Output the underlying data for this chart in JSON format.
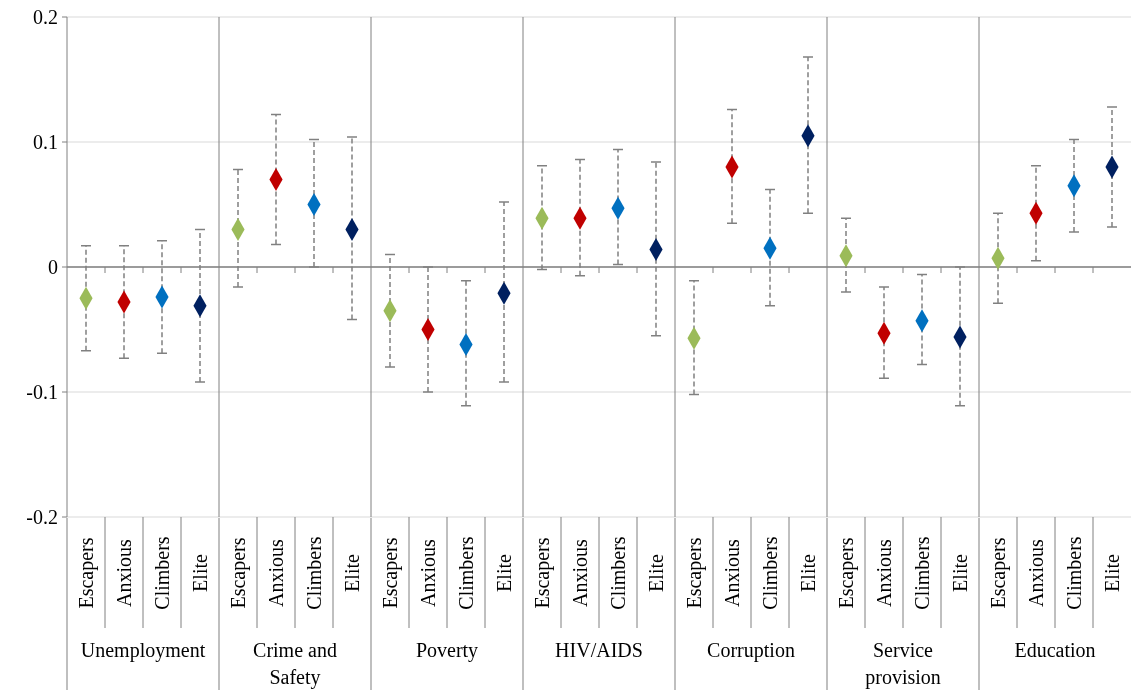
{
  "chart_data": {
    "type": "scatter",
    "marker": "diamond",
    "grid": "y",
    "ylim": [
      -0.2,
      0.2
    ],
    "yticks": [
      -0.2,
      -0.1,
      0,
      0.1,
      0.2
    ],
    "categories": [
      "Escapers",
      "Anxious",
      "Climbers",
      "Elite",
      "Escapers",
      "Anxious",
      "Climbers",
      "Elite",
      "Escapers",
      "Anxious",
      "Climbers",
      "Elite",
      "Escapers",
      "Anxious",
      "Climbers",
      "Elite",
      "Escapers",
      "Anxious",
      "Climbers",
      "Elite",
      "Escapers",
      "Anxious",
      "Climbers",
      "Elite",
      "Escapers",
      "Anxious",
      "Climbers",
      "Elite"
    ],
    "annotations": [
      "Unemployment",
      "Crime and Safety",
      "Poverty",
      "HIV/AIDS",
      "Corruption",
      "Service provision",
      "Education"
    ],
    "values": [
      -0.025,
      -0.028,
      -0.024,
      -0.031,
      0.03,
      0.07,
      0.05,
      0.03,
      -0.035,
      -0.05,
      -0.062,
      -0.021,
      0.039,
      0.039,
      0.047,
      0.014,
      -0.057,
      0.08,
      0.015,
      0.105,
      0.009,
      -0.053,
      -0.043,
      -0.056,
      0.007,
      0.043,
      0.065,
      0.08
    ],
    "colors": [
      "#9bbb59",
      "#c00000",
      "#0070c0",
      "#002060",
      "#9bbb59",
      "#c00000",
      "#0070c0",
      "#002060",
      "#9bbb59",
      "#c00000",
      "#0070c0",
      "#002060",
      "#9bbb59",
      "#c00000",
      "#0070c0",
      "#002060",
      "#9bbb59",
      "#c00000",
      "#0070c0",
      "#002060",
      "#9bbb59",
      "#c00000",
      "#0070c0",
      "#002060",
      "#9bbb59",
      "#c00000",
      "#0070c0",
      "#002060"
    ],
    "errors": [
      [
        -0.067,
        0.017
      ],
      [
        -0.073,
        0.017
      ],
      [
        -0.069,
        0.021
      ],
      [
        -0.092,
        0.03
      ],
      [
        -0.016,
        0.078
      ],
      [
        0.018,
        0.122
      ],
      [
        0.0,
        0.102
      ],
      [
        -0.042,
        0.104
      ],
      [
        -0.08,
        0.01
      ],
      [
        -0.1,
        0.0
      ],
      [
        -0.111,
        -0.011
      ],
      [
        -0.092,
        0.052
      ],
      [
        -0.002,
        0.081
      ],
      [
        -0.007,
        0.086
      ],
      [
        0.002,
        0.094
      ],
      [
        -0.055,
        0.084
      ],
      [
        -0.102,
        -0.011
      ],
      [
        0.035,
        0.126
      ],
      [
        -0.031,
        0.062
      ],
      [
        0.043,
        0.168
      ],
      [
        -0.02,
        0.039
      ],
      [
        -0.089,
        -0.016
      ],
      [
        -0.078,
        -0.006
      ],
      [
        -0.111,
        0.0
      ],
      [
        -0.029,
        0.043
      ],
      [
        0.005,
        0.081
      ],
      [
        0.028,
        0.102
      ],
      [
        0.032,
        0.128
      ]
    ]
  }
}
